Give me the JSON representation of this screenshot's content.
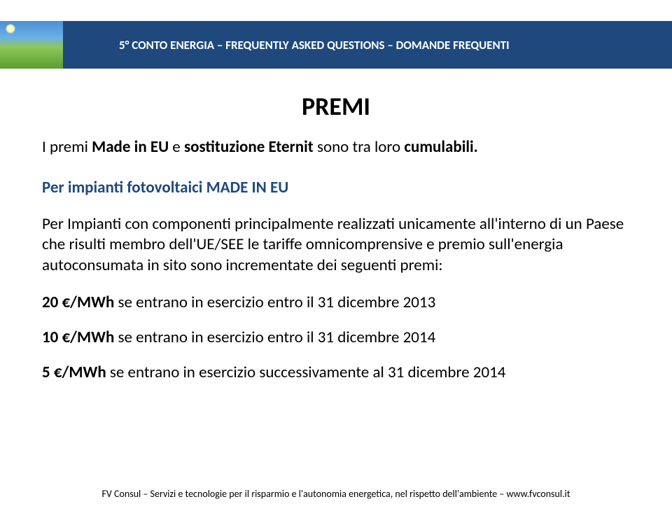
{
  "header": {
    "title": "5° CONTO ENERGIA – FREQUENTLY ASKED QUESTIONS – DOMANDE FREQUENTI",
    "band_color": "#1f497d"
  },
  "section_title": "PREMI",
  "intro": {
    "prefix": "I premi ",
    "bold1": "Made in EU",
    "mid": " e ",
    "bold2": "sostituzione Eternit",
    "mid2": " sono tra loro ",
    "bold3": "cumulabili.",
    "suffix": ""
  },
  "sub1": "Per impianti fotovoltaici MADE IN EU",
  "para": "Per Impianti con componenti principalmente realizzati unicamente all'interno di un Paese che risulti membro dell'UE/SEE le tariffe omnicomprensive e premio sull'energia autoconsumata in sito sono incrementate dei seguenti premi:",
  "bullets": [
    {
      "bold": "20 €/MWh",
      "rest": " se entrano in esercizio entro il 31 dicembre 2013"
    },
    {
      "bold": "10 €/MWh",
      "rest": " se entrano in esercizio entro il 31 dicembre 2014"
    },
    {
      "bold": "5 €/MWh",
      "rest": " se entrano in esercizio successivamente al 31 dicembre 2014"
    }
  ],
  "footer": "FV Consul – Servizi e tecnologie per il risparmio e l'autonomia energetica, nel rispetto dell'ambiente – www.fvconsul.it"
}
